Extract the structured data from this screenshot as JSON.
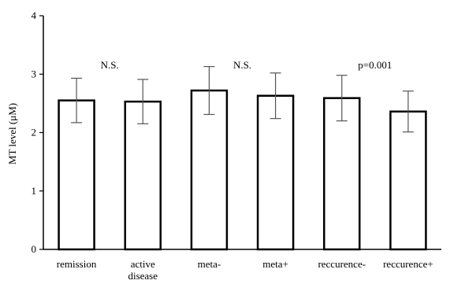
{
  "chart_data": {
    "type": "bar",
    "title": "",
    "xlabel": "",
    "ylabel": "MT level (μM)",
    "ylim": [
      0,
      4
    ],
    "yticks": [
      "0",
      "1",
      "2",
      "3",
      "4"
    ],
    "grid": false,
    "legend": "none",
    "categories": [
      [
        "remission"
      ],
      [
        "active",
        "disease"
      ],
      [
        "meta-"
      ],
      [
        "meta+"
      ],
      [
        "reccurence-"
      ],
      [
        "reccurence+"
      ]
    ],
    "values": [
      2.55,
      2.53,
      2.72,
      2.63,
      2.59,
      2.36
    ],
    "errors": [
      0.38,
      0.38,
      0.41,
      0.39,
      0.39,
      0.35
    ],
    "annotations": [
      {
        "text": "N.S.",
        "pair": [
          0,
          1
        ],
        "y": 3.15
      },
      {
        "text": "N.S.",
        "pair": [
          2,
          3
        ],
        "y": 3.15
      },
      {
        "text": "p=0.001",
        "pair": [
          4,
          5
        ],
        "y": 3.15
      }
    ],
    "colors": {
      "bar_fill": "#ffffff",
      "bar_stroke": "#000000",
      "error_bar": "#555555"
    }
  }
}
